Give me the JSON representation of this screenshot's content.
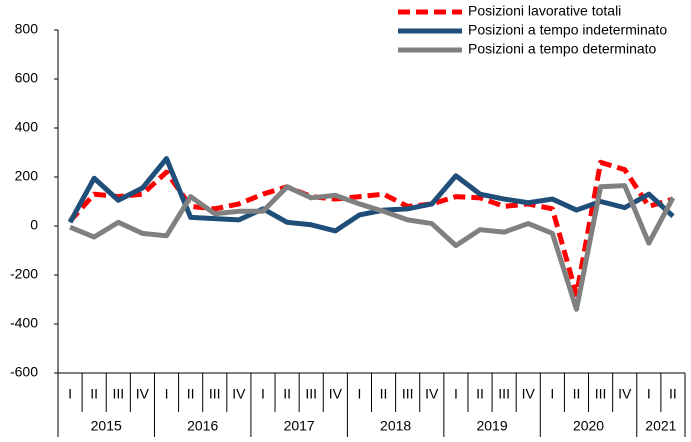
{
  "chart_data": {
    "type": "line",
    "categories": [
      "I",
      "II",
      "III",
      "IV",
      "I",
      "II",
      "III",
      "IV",
      "I",
      "II",
      "III",
      "IV",
      "I",
      "II",
      "III",
      "IV",
      "I",
      "II",
      "III",
      "IV",
      "I",
      "II",
      "III",
      "IV",
      "I",
      "II"
    ],
    "groups": [
      "2015",
      "2016",
      "2017",
      "2018",
      "2019",
      "2020",
      "2021"
    ],
    "series": [
      {
        "name": "Posizioni lavorative totali",
        "color": "#ff0000",
        "dashed": true,
        "values": [
          20,
          130,
          120,
          130,
          220,
          80,
          70,
          90,
          130,
          160,
          120,
          110,
          120,
          130,
          80,
          90,
          120,
          115,
          80,
          90,
          70,
          -280,
          260,
          230,
          80,
          110
        ]
      },
      {
        "name": "Posizioni a tempo indeterminato",
        "color": "#1f4e79",
        "dashed": false,
        "values": [
          15,
          195,
          105,
          155,
          275,
          35,
          30,
          25,
          70,
          15,
          5,
          -20,
          45,
          65,
          70,
          90,
          205,
          130,
          110,
          95,
          110,
          65,
          100,
          75,
          130,
          40
        ]
      },
      {
        "name": "Posizioni a  tempo determinato",
        "color": "#808080",
        "dashed": false,
        "values": [
          -5,
          -45,
          15,
          -30,
          -40,
          120,
          50,
          60,
          60,
          160,
          115,
          125,
          90,
          60,
          25,
          10,
          -80,
          -15,
          -25,
          10,
          -30,
          -340,
          160,
          165,
          -70,
          115
        ]
      }
    ],
    "ylim": [
      -600,
      800
    ],
    "yticks": [
      -600,
      -400,
      -200,
      0,
      200,
      400,
      600,
      800
    ],
    "grid": false,
    "legend": "top-right"
  }
}
